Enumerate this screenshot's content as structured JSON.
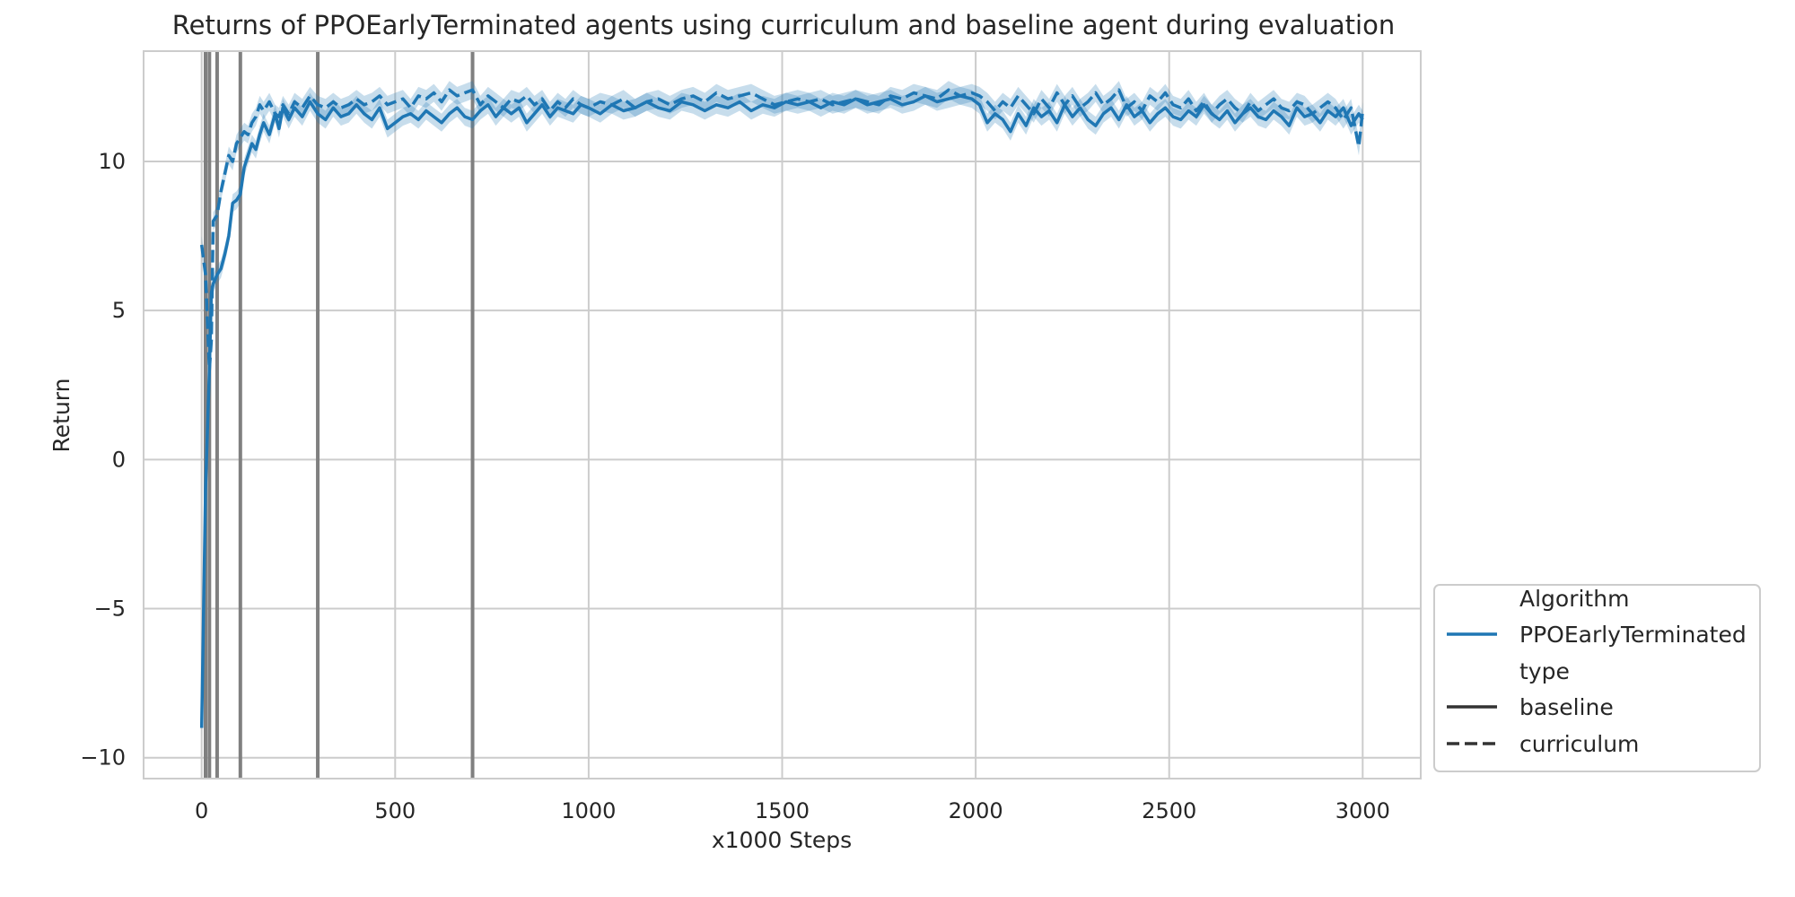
{
  "chart_data": {
    "type": "line",
    "title": "Returns of PPOEarlyTerminated agents using curriculum and baseline agent during evaluation",
    "xlabel": "x1000 Steps",
    "ylabel": "Return",
    "xlim": [
      -150,
      3150
    ],
    "ylim": [
      -10.7,
      13.7
    ],
    "xticks": [
      0,
      500,
      1000,
      1500,
      2000,
      2500,
      3000
    ],
    "xtick_labels": [
      "0",
      "500",
      "1000",
      "1500",
      "2000",
      "2500",
      "3000"
    ],
    "yticks": [
      -10,
      -5,
      0,
      5,
      10
    ],
    "ytick_labels": [
      "−10",
      "−5",
      "0",
      "5",
      "10"
    ],
    "grid": true,
    "vertical_lines": [
      10,
      20,
      40,
      100,
      300,
      700
    ],
    "vertical_line_color": "#808080",
    "legend": {
      "placement": "lower-right-outside",
      "entries": [
        {
          "label": "Algorithm",
          "kind": "header"
        },
        {
          "label": "PPOEarlyTerminated",
          "kind": "line",
          "color": "#1f77b4",
          "dash": "solid"
        },
        {
          "label": "type",
          "kind": "header"
        },
        {
          "label": "baseline",
          "kind": "line",
          "color": "#333333",
          "dash": "solid"
        },
        {
          "label": "curriculum",
          "kind": "line",
          "color": "#333333",
          "dash": "dashed"
        }
      ]
    },
    "series": [
      {
        "name": "baseline",
        "color": "#1f77b4",
        "dash": "solid",
        "band": 0.3,
        "x": [
          0,
          10,
          20,
          25,
          30,
          40,
          50,
          60,
          70,
          80,
          90,
          100,
          110,
          120,
          130,
          140,
          150,
          160,
          175,
          190,
          200,
          210,
          225,
          240,
          260,
          280,
          300,
          320,
          340,
          360,
          380,
          400,
          420,
          440,
          460,
          480,
          500,
          520,
          540,
          560,
          580,
          600,
          620,
          640,
          660,
          680,
          700,
          720,
          740,
          760,
          780,
          800,
          820,
          840,
          860,
          880,
          900,
          920,
          940,
          960,
          980,
          1000,
          1030,
          1060,
          1090,
          1120,
          1150,
          1180,
          1210,
          1240,
          1270,
          1300,
          1330,
          1360,
          1390,
          1420,
          1450,
          1480,
          1510,
          1540,
          1570,
          1600,
          1630,
          1660,
          1690,
          1720,
          1750,
          1780,
          1810,
          1840,
          1870,
          1900,
          1930,
          1960,
          1990,
          2010,
          2030,
          2050,
          2070,
          2090,
          2110,
          2130,
          2150,
          2170,
          2190,
          2210,
          2230,
          2250,
          2270,
          2290,
          2310,
          2330,
          2350,
          2370,
          2390,
          2410,
          2430,
          2450,
          2470,
          2490,
          2510,
          2530,
          2550,
          2570,
          2590,
          2610,
          2630,
          2650,
          2670,
          2690,
          2710,
          2730,
          2750,
          2770,
          2790,
          2810,
          2830,
          2850,
          2870,
          2890,
          2910,
          2930,
          2950,
          2970,
          2990,
          3000
        ],
        "y": [
          -9.0,
          -1.0,
          3.0,
          5.6,
          5.9,
          6.2,
          6.4,
          6.9,
          7.5,
          8.6,
          8.7,
          8.9,
          9.8,
          10.2,
          10.6,
          10.4,
          10.9,
          11.3,
          10.9,
          11.6,
          11.1,
          11.8,
          11.4,
          11.8,
          11.5,
          12.0,
          11.6,
          11.4,
          11.8,
          11.5,
          11.6,
          11.9,
          11.6,
          11.4,
          11.8,
          11.1,
          11.3,
          11.5,
          11.6,
          11.4,
          11.7,
          11.5,
          11.3,
          11.6,
          11.8,
          11.5,
          11.4,
          11.7,
          11.9,
          11.5,
          11.8,
          11.6,
          11.8,
          11.3,
          11.6,
          11.9,
          11.5,
          11.8,
          11.7,
          11.6,
          11.9,
          11.8,
          11.6,
          11.9,
          11.7,
          11.8,
          12.0,
          11.8,
          11.7,
          12.0,
          11.9,
          11.7,
          11.9,
          11.8,
          12.0,
          11.7,
          11.9,
          11.8,
          12.0,
          11.9,
          12.0,
          11.8,
          12.0,
          11.9,
          12.1,
          11.9,
          12.0,
          12.1,
          11.9,
          12.0,
          12.2,
          12.0,
          12.1,
          12.2,
          12.1,
          11.9,
          11.3,
          11.6,
          11.4,
          11.0,
          11.6,
          11.2,
          11.8,
          11.5,
          11.7,
          11.3,
          11.9,
          11.5,
          11.8,
          11.4,
          11.2,
          11.6,
          11.8,
          11.4,
          11.9,
          11.5,
          11.7,
          11.3,
          11.6,
          11.8,
          11.5,
          11.4,
          11.7,
          11.5,
          11.9,
          11.6,
          11.4,
          11.7,
          11.3,
          11.6,
          11.8,
          11.5,
          11.4,
          11.7,
          11.5,
          11.2,
          11.8,
          11.5,
          11.6,
          11.3,
          11.7,
          11.5,
          11.8,
          11.2,
          11.6,
          11.4
        ]
      },
      {
        "name": "curriculum",
        "color": "#1f77b4",
        "dash": "dashed",
        "band": 0.3,
        "x": [
          0,
          10,
          20,
          25,
          30,
          40,
          50,
          60,
          70,
          80,
          90,
          100,
          110,
          120,
          130,
          140,
          150,
          160,
          175,
          190,
          200,
          210,
          225,
          240,
          260,
          280,
          300,
          320,
          340,
          360,
          380,
          400,
          420,
          440,
          460,
          480,
          500,
          520,
          540,
          560,
          580,
          600,
          620,
          640,
          660,
          680,
          700,
          720,
          740,
          760,
          780,
          800,
          820,
          840,
          860,
          880,
          900,
          920,
          940,
          960,
          980,
          1000,
          1030,
          1060,
          1090,
          1120,
          1150,
          1180,
          1210,
          1240,
          1270,
          1300,
          1330,
          1360,
          1390,
          1420,
          1450,
          1480,
          1510,
          1540,
          1570,
          1600,
          1630,
          1660,
          1690,
          1720,
          1750,
          1780,
          1810,
          1840,
          1870,
          1900,
          1930,
          1960,
          1990,
          2010,
          2030,
          2050,
          2070,
          2090,
          2110,
          2130,
          2150,
          2170,
          2190,
          2210,
          2230,
          2250,
          2270,
          2290,
          2310,
          2330,
          2350,
          2370,
          2390,
          2410,
          2430,
          2450,
          2470,
          2490,
          2510,
          2530,
          2550,
          2570,
          2590,
          2610,
          2630,
          2650,
          2670,
          2690,
          2710,
          2730,
          2750,
          2770,
          2790,
          2810,
          2830,
          2850,
          2870,
          2890,
          2910,
          2930,
          2950,
          2970,
          2990,
          3000
        ],
        "y": [
          7.2,
          6.2,
          3.0,
          4.0,
          8.0,
          8.2,
          9.0,
          9.6,
          10.2,
          10.0,
          10.6,
          10.8,
          11.0,
          10.9,
          11.3,
          11.5,
          11.9,
          11.7,
          12.0,
          11.6,
          11.5,
          11.9,
          11.6,
          12.0,
          11.8,
          12.2,
          11.9,
          11.8,
          12.0,
          11.8,
          11.9,
          12.1,
          11.9,
          12.0,
          12.2,
          11.9,
          12.0,
          12.1,
          11.8,
          12.2,
          12.1,
          12.3,
          12.0,
          12.4,
          12.2,
          12.3,
          12.4,
          11.9,
          12.2,
          12.0,
          11.8,
          12.1,
          12.0,
          12.2,
          11.9,
          12.1,
          11.7,
          12.0,
          11.8,
          12.1,
          11.9,
          11.8,
          12.0,
          11.9,
          12.1,
          11.8,
          12.0,
          12.1,
          11.9,
          12.1,
          12.2,
          12.0,
          12.3,
          12.1,
          12.2,
          12.3,
          12.1,
          11.9,
          12.0,
          12.1,
          12.0,
          12.1,
          11.9,
          12.0,
          12.1,
          12.0,
          11.9,
          12.2,
          12.1,
          12.3,
          12.2,
          12.1,
          12.4,
          12.2,
          12.3,
          12.2,
          12.0,
          11.7,
          12.0,
          11.8,
          12.2,
          11.9,
          11.6,
          12.1,
          11.8,
          12.3,
          11.9,
          12.2,
          11.8,
          12.0,
          12.3,
          11.9,
          12.1,
          12.4,
          11.8,
          12.0,
          11.7,
          12.2,
          12.0,
          12.3,
          11.9,
          11.8,
          12.1,
          11.7,
          12.0,
          11.6,
          11.9,
          12.1,
          11.8,
          11.6,
          12.0,
          11.7,
          11.9,
          12.1,
          11.8,
          11.7,
          12.0,
          11.9,
          11.6,
          11.8,
          12.0,
          11.8,
          11.4,
          11.8,
          10.5,
          11.7
        ]
      }
    ]
  }
}
